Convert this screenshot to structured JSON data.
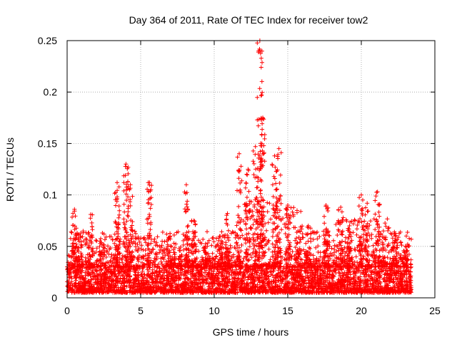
{
  "chart_data": {
    "type": "scatter",
    "title": "Day 364 of 2011, Rate Of TEC Index for receiver tow2",
    "xlabel": "GPS time / hours",
    "ylabel": "ROTI / TECUs",
    "xlim": [
      0,
      25
    ],
    "ylim": [
      0,
      0.25
    ],
    "x_ticks": [
      0,
      5,
      10,
      15,
      20,
      25
    ],
    "x_tick_labels": [
      "0",
      "5",
      "10",
      "15",
      "20",
      "25"
    ],
    "y_ticks": [
      0,
      0.05,
      0.1,
      0.15,
      0.2,
      0.25
    ],
    "y_tick_labels": [
      "0",
      "0.05",
      "0.1",
      "0.15",
      "0.2",
      "0.25"
    ],
    "grid": true,
    "marker": "+",
    "series_color": "#ff0000",
    "data_x_range": [
      0,
      23.4
    ],
    "background_band": [
      0.005,
      0.03
    ],
    "bursts": [
      {
        "x": 0.5,
        "peak": 0.086
      },
      {
        "x": 0.9,
        "peak": 0.06
      },
      {
        "x": 1.6,
        "peak": 0.081
      },
      {
        "x": 2.4,
        "peak": 0.063
      },
      {
        "x": 3.4,
        "peak": 0.112
      },
      {
        "x": 4.0,
        "peak": 0.13
      },
      {
        "x": 4.3,
        "peak": 0.11
      },
      {
        "x": 5.6,
        "peak": 0.112
      },
      {
        "x": 7.0,
        "peak": 0.06
      },
      {
        "x": 8.1,
        "peak": 0.11
      },
      {
        "x": 8.6,
        "peak": 0.075
      },
      {
        "x": 9.4,
        "peak": 0.05
      },
      {
        "x": 10.4,
        "peak": 0.06
      },
      {
        "x": 10.9,
        "peak": 0.082
      },
      {
        "x": 11.7,
        "peak": 0.14
      },
      {
        "x": 12.3,
        "peak": 0.125
      },
      {
        "x": 12.8,
        "peak": 0.147
      },
      {
        "x": 13.1,
        "peak": 0.25
      },
      {
        "x": 13.3,
        "peak": 0.175
      },
      {
        "x": 14.1,
        "peak": 0.138
      },
      {
        "x": 14.4,
        "peak": 0.145
      },
      {
        "x": 15.0,
        "peak": 0.09
      },
      {
        "x": 15.7,
        "peak": 0.065
      },
      {
        "x": 16.4,
        "peak": 0.07
      },
      {
        "x": 17.6,
        "peak": 0.09
      },
      {
        "x": 18.6,
        "peak": 0.088
      },
      {
        "x": 19.2,
        "peak": 0.07
      },
      {
        "x": 20.0,
        "peak": 0.1
      },
      {
        "x": 20.4,
        "peak": 0.092
      },
      {
        "x": 21.1,
        "peak": 0.103
      },
      {
        "x": 21.5,
        "peak": 0.065
      },
      {
        "x": 22.3,
        "peak": 0.06
      },
      {
        "x": 23.0,
        "peak": 0.05
      }
    ]
  }
}
